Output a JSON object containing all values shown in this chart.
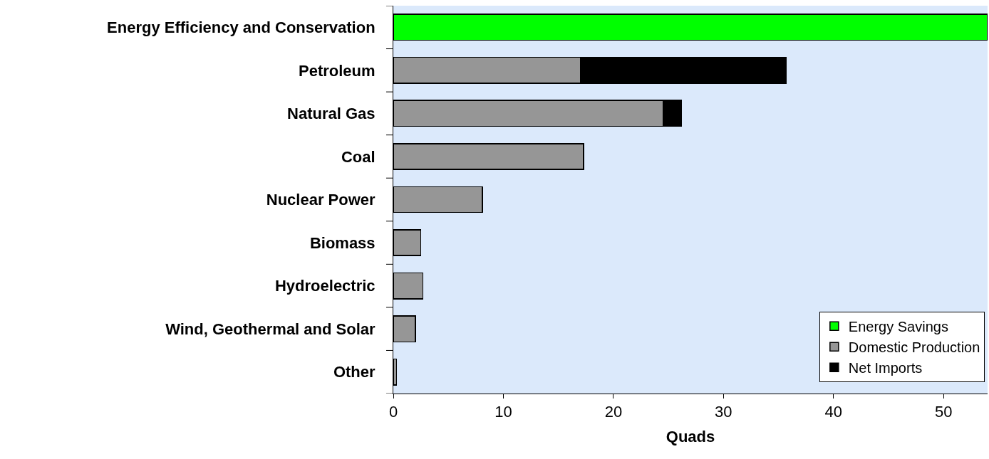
{
  "chart_data": {
    "type": "bar",
    "orientation": "horizontal",
    "stacked": true,
    "xlabel": "Quads",
    "categories": [
      "Energy Efficiency and Conservation",
      "Petroleum",
      "Natural Gas",
      "Coal",
      "Nuclear Power",
      "Biomass",
      "Hydroelectric",
      "Wind, Geothermal and Solar",
      "Other"
    ],
    "series": [
      {
        "name": "Energy Savings",
        "color": "#00ff00",
        "values": [
          54,
          null,
          null,
          null,
          null,
          null,
          null,
          null,
          null
        ]
      },
      {
        "name": "Domestic Production",
        "color": "#969696",
        "values": [
          null,
          17.0,
          24.5,
          17.3,
          8.1,
          2.5,
          2.7,
          2.0,
          0.3
        ]
      },
      {
        "name": "Net Imports",
        "color": "#000000",
        "values": [
          null,
          18.7,
          1.7,
          null,
          null,
          null,
          null,
          null,
          null
        ]
      }
    ],
    "xlim": [
      0,
      54
    ],
    "xticks": [
      0,
      10,
      20,
      30,
      40,
      50
    ],
    "grid": false,
    "legend": "bottom right"
  }
}
